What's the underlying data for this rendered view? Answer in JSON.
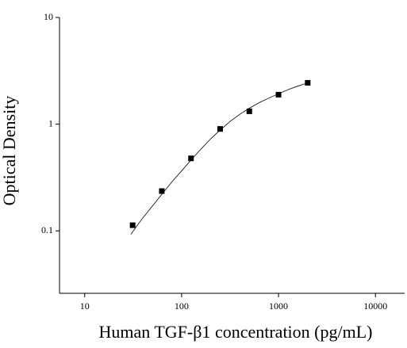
{
  "chart_data": {
    "type": "scatter",
    "x_label": "Human TGF-β1 concentration (pg/mL)",
    "y_label": "Optical Density",
    "x": [
      31.25,
      62.5,
      125,
      250,
      500,
      1000,
      2000
    ],
    "values": [
      0.113,
      0.236,
      0.478,
      0.902,
      1.32,
      1.89,
      2.44
    ],
    "color": "#000000",
    "curve": {
      "x": [
        30,
        35,
        40,
        50,
        62.5,
        80,
        100,
        125,
        160,
        200,
        250,
        320,
        400,
        500,
        640,
        800,
        1000,
        1300,
        1600,
        2000
      ],
      "values": [
        0.093,
        0.113,
        0.133,
        0.171,
        0.22,
        0.29,
        0.365,
        0.46,
        0.59,
        0.73,
        0.88,
        1.07,
        1.24,
        1.41,
        1.6,
        1.76,
        1.93,
        2.13,
        2.28,
        2.44
      ],
      "color": "#000000"
    },
    "xlim": [
      5.5,
      20000
    ],
    "ylim": [
      0.026,
      10
    ],
    "xticks": [
      10,
      100,
      1000,
      10000
    ],
    "yticks": [
      0.1,
      1,
      10
    ],
    "log_x": true,
    "log_y": true,
    "grid": false
  }
}
